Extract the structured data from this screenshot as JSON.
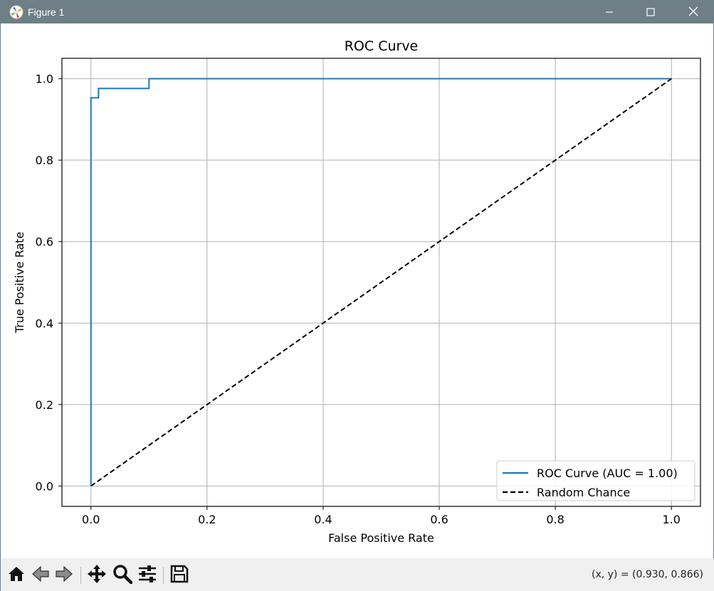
{
  "window": {
    "title": "Figure 1",
    "icon": "matplotlib-logo-icon",
    "controls": [
      "minimize-icon",
      "maximize-icon",
      "close-icon"
    ]
  },
  "toolbar": {
    "buttons": [
      {
        "name": "home",
        "icon": "home-icon"
      },
      {
        "name": "back",
        "icon": "arrow-left-icon"
      },
      {
        "name": "forward",
        "icon": "arrow-right-icon"
      },
      {
        "name": "pan",
        "icon": "move-icon"
      },
      {
        "name": "zoom",
        "icon": "magnifier-icon"
      },
      {
        "name": "configure-subplots",
        "icon": "sliders-icon"
      },
      {
        "name": "save",
        "icon": "floppy-disk-icon"
      }
    ],
    "coordinates": "(x, y) = (0.930, 0.866)"
  },
  "chart_data": {
    "type": "line",
    "title": "ROC Curve",
    "xlabel": "False Positive Rate",
    "ylabel": "True Positive Rate",
    "xlim": [
      -0.05,
      1.05
    ],
    "ylim": [
      -0.05,
      1.05
    ],
    "xticks": [
      0.0,
      0.2,
      0.4,
      0.6,
      0.8,
      1.0
    ],
    "xtick_labels": [
      "0.0",
      "0.2",
      "0.4",
      "0.6",
      "0.8",
      "1.0"
    ],
    "yticks": [
      0.0,
      0.2,
      0.4,
      0.6,
      0.8,
      1.0
    ],
    "ytick_labels": [
      "0.0",
      "0.2",
      "0.4",
      "0.6",
      "0.8",
      "1.0"
    ],
    "grid": true,
    "legend_position": "lower-right",
    "series": [
      {
        "name": "ROC Curve (AUC = 1.00)",
        "color": "#1f77b4",
        "style": "solid",
        "x": [
          0.0,
          0.0,
          0.0,
          0.013,
          0.013,
          0.1,
          0.1,
          1.0
        ],
        "y": [
          0.0,
          0.953,
          0.953,
          0.953,
          0.976,
          0.976,
          1.0,
          1.0
        ]
      },
      {
        "name": "Random Chance",
        "color": "#000000",
        "style": "dashed",
        "x": [
          0.0,
          1.0
        ],
        "y": [
          0.0,
          1.0
        ]
      }
    ]
  }
}
